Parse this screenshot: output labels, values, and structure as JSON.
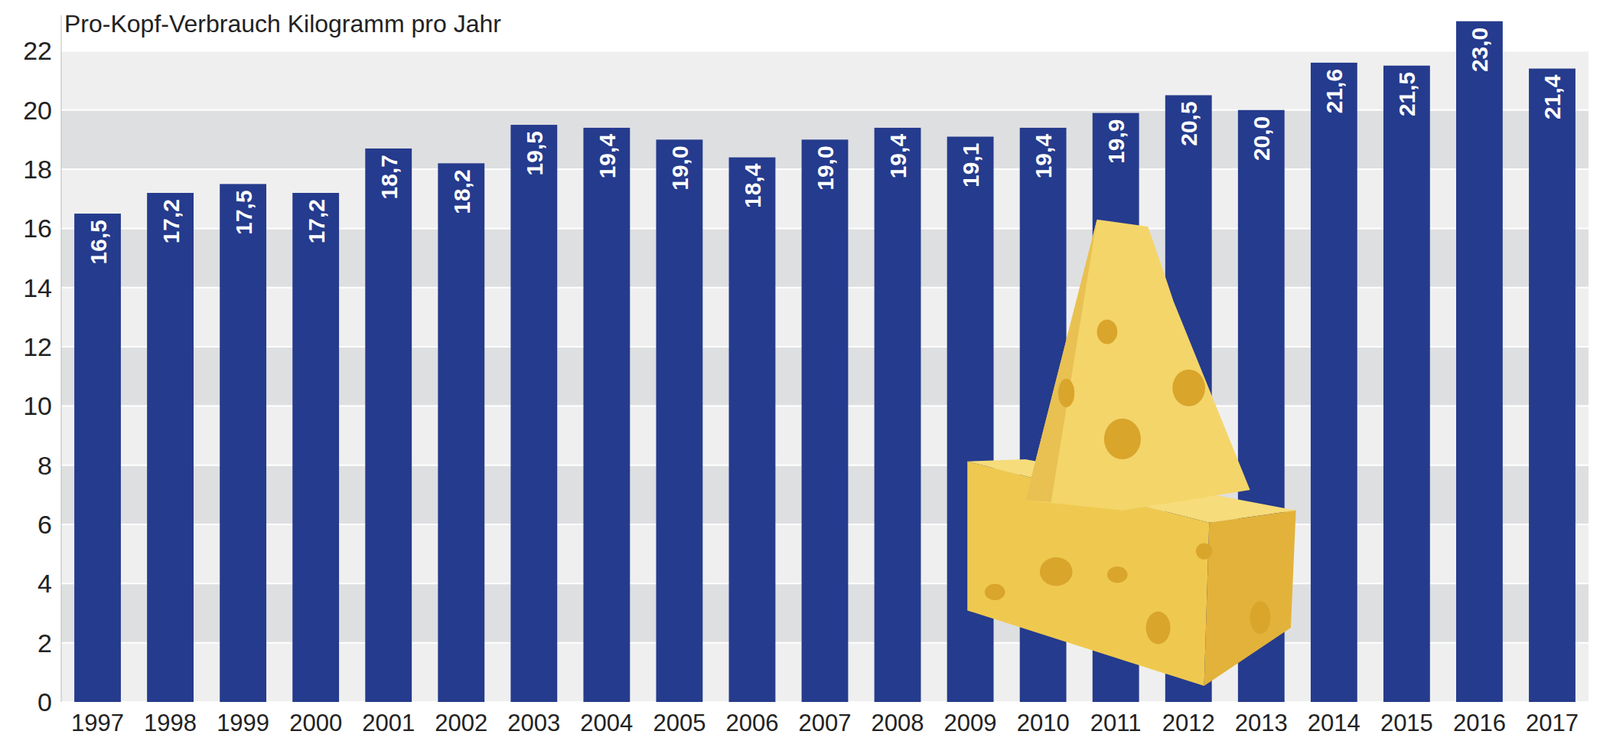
{
  "chart_data": {
    "type": "bar",
    "title": "Pro-Kopf-Verbrauch Kilogramm pro Jahr",
    "categories": [
      "1997",
      "1998",
      "1999",
      "2000",
      "2001",
      "2002",
      "2003",
      "2004",
      "2005",
      "2006",
      "2007",
      "2008",
      "2009",
      "2010",
      "2011",
      "2012",
      "2013",
      "2014",
      "2015",
      "2016",
      "2017"
    ],
    "values": [
      16.5,
      17.2,
      17.5,
      17.2,
      18.7,
      18.2,
      19.5,
      19.4,
      19.0,
      18.4,
      19.0,
      19.4,
      19.1,
      19.4,
      19.9,
      20.5,
      20.0,
      21.6,
      21.5,
      23.0,
      21.4
    ],
    "value_labels": [
      "16,5",
      "17,2",
      "17,5",
      "17,2",
      "18,7",
      "18,2",
      "19,5",
      "19,4",
      "19,0",
      "18,4",
      "19,0",
      "19,4",
      "19,1",
      "19,4",
      "19,9",
      "20,5",
      "20,0",
      "21,6",
      "21,5",
      "23,0",
      "21,4"
    ],
    "color": "#253b8d",
    "ylim": [
      0,
      23.2
    ],
    "yticks": [
      0,
      2,
      4,
      6,
      8,
      10,
      12,
      14,
      16,
      18,
      20,
      22
    ],
    "grid": true,
    "data_labels": true
  }
}
